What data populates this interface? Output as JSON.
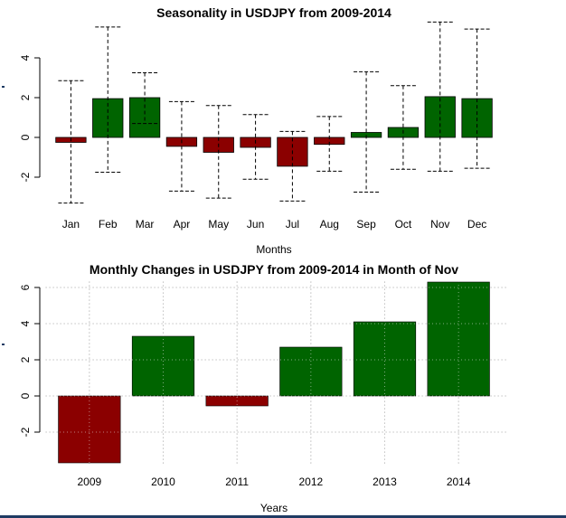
{
  "colors": {
    "positive": "#006400",
    "negative": "#8b0000",
    "axis": "#000000",
    "grid": "#c8c8c8",
    "whisker": "#000000"
  },
  "chart_data": [
    {
      "type": "bar",
      "title": "Seasonality in USDJPY from 2009-2014",
      "xlabel": "Months",
      "ylabel": "",
      "ylim": [
        -3.6,
        5.8
      ],
      "yticks": [
        -2,
        0,
        2,
        4
      ],
      "ytick_labels": [
        "-2",
        "0",
        "2",
        "4"
      ],
      "categories": [
        "Jan",
        "Feb",
        "Mar",
        "Apr",
        "May",
        "Jun",
        "Jul",
        "Aug",
        "Sep",
        "Oct",
        "Nov",
        "Dec"
      ],
      "values": [
        -0.25,
        1.95,
        2.0,
        -0.45,
        -0.75,
        -0.5,
        -1.45,
        -0.35,
        0.25,
        0.5,
        2.05,
        1.95
      ],
      "error_low": [
        -3.3,
        -1.75,
        0.7,
        -2.7,
        -3.05,
        -2.1,
        -3.2,
        -1.7,
        -2.75,
        -1.6,
        -1.7,
        -1.55
      ],
      "error_high": [
        2.85,
        5.55,
        3.25,
        1.8,
        1.6,
        1.15,
        0.3,
        1.05,
        3.3,
        2.6,
        5.8,
        5.45
      ],
      "grid": false
    },
    {
      "type": "bar",
      "title": "Monthly Changes in USDJPY from 2009-2014 in Month of Nov",
      "xlabel": "Years",
      "ylabel": "",
      "ylim": [
        -3.7,
        6.3
      ],
      "yticks": [
        -2,
        0,
        2,
        4,
        6
      ],
      "ytick_labels": [
        "-2",
        "0",
        "2",
        "4",
        "6"
      ],
      "categories": [
        "2009",
        "2010",
        "2011",
        "2012",
        "2013",
        "2014"
      ],
      "values": [
        -3.7,
        3.3,
        -0.55,
        2.7,
        4.1,
        6.3
      ],
      "grid": true
    }
  ]
}
